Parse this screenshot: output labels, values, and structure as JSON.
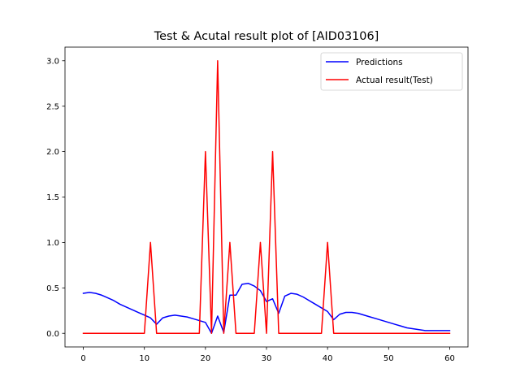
{
  "chart_data": {
    "type": "line",
    "title": "Test & Acutal result plot of [AID03106]",
    "xlabel": "",
    "ylabel": "",
    "xlim": [
      -3,
      63
    ],
    "ylim": [
      -0.15,
      3.15
    ],
    "xticks": [
      0,
      10,
      20,
      30,
      40,
      50,
      60
    ],
    "yticks": [
      0.0,
      0.5,
      1.0,
      1.5,
      2.0,
      2.5,
      3.0
    ],
    "xtick_labels": [
      "0",
      "10",
      "20",
      "30",
      "40",
      "50",
      "60"
    ],
    "ytick_labels": [
      "0.0",
      "0.5",
      "1.0",
      "1.5",
      "2.0",
      "2.5",
      "3.0"
    ],
    "grid": false,
    "legend_position": "top-right",
    "x": [
      0,
      1,
      2,
      3,
      4,
      5,
      6,
      7,
      8,
      9,
      10,
      11,
      12,
      13,
      14,
      15,
      16,
      17,
      18,
      19,
      20,
      21,
      22,
      23,
      24,
      25,
      26,
      27,
      28,
      29,
      30,
      31,
      32,
      33,
      34,
      35,
      36,
      37,
      38,
      39,
      40,
      41,
      42,
      43,
      44,
      45,
      46,
      47,
      48,
      49,
      50,
      51,
      52,
      53,
      54,
      55,
      56,
      57,
      58,
      59,
      60
    ],
    "series": [
      {
        "name": "Predictions",
        "color": "#0000ff",
        "values": [
          0.44,
          0.45,
          0.44,
          0.42,
          0.39,
          0.36,
          0.32,
          0.29,
          0.26,
          0.23,
          0.2,
          0.17,
          0.1,
          0.17,
          0.19,
          0.2,
          0.19,
          0.18,
          0.16,
          0.14,
          0.12,
          0.0,
          0.19,
          0.01,
          0.42,
          0.42,
          0.54,
          0.55,
          0.52,
          0.47,
          0.35,
          0.38,
          0.22,
          0.41,
          0.44,
          0.43,
          0.4,
          0.36,
          0.32,
          0.28,
          0.24,
          0.15,
          0.21,
          0.23,
          0.23,
          0.22,
          0.2,
          0.18,
          0.16,
          0.14,
          0.12,
          0.1,
          0.08,
          0.06,
          0.05,
          0.04,
          0.03,
          0.03,
          0.03,
          0.03,
          0.03
        ]
      },
      {
        "name": "Actual result(Test)",
        "color": "#ff0000",
        "values": [
          0,
          0,
          0,
          0,
          0,
          0,
          0,
          0,
          0,
          0,
          0,
          1,
          0,
          0,
          0,
          0,
          0,
          0,
          0,
          0,
          2,
          0,
          3,
          0,
          1,
          0,
          0,
          0,
          0,
          1,
          0,
          2,
          0,
          0,
          0,
          0,
          0,
          0,
          0,
          0,
          1,
          0,
          0,
          0,
          0,
          0,
          0,
          0,
          0,
          0,
          0,
          0,
          0,
          0,
          0,
          0,
          0,
          0,
          0,
          0,
          0
        ]
      }
    ]
  }
}
